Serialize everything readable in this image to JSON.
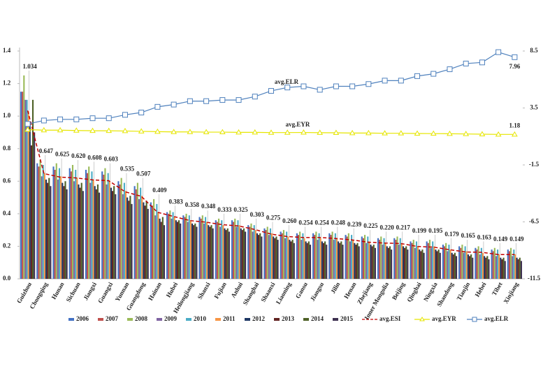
{
  "chart_data": {
    "type": "bar",
    "categories": [
      "Guizhou",
      "Chongqing",
      "Hunan",
      "Sichuan",
      "Jiangxi",
      "Guangxi",
      "Yunnan",
      "Guangdong",
      "Hainan",
      "Hubei",
      "Heilongjiang",
      "Shanxi",
      "Fujian",
      "Anhui",
      "Shanghai",
      "Shaanxi",
      "Liaoning",
      "Gansu",
      "Jiangsu",
      "Jilin",
      "Henan",
      "Zhejiang",
      "Inner Mongolia",
      "Beijing",
      "Qinghai",
      "Ningxia",
      "Shandong",
      "Tianjin",
      "Hebei",
      "Tibet",
      "Xinjiang"
    ],
    "series": [
      {
        "name": "2006",
        "type": "bar",
        "color": "#4472c4",
        "values": [
          1.15,
          0.71,
          0.69,
          0.68,
          0.67,
          0.66,
          0.6,
          0.57,
          0.47,
          0.41,
          0.39,
          0.38,
          0.36,
          0.36,
          0.33,
          0.31,
          0.29,
          0.28,
          0.28,
          0.28,
          0.27,
          0.26,
          0.25,
          0.25,
          0.23,
          0.23,
          0.21,
          0.2,
          0.19,
          0.18,
          0.18
        ]
      },
      {
        "name": "2007",
        "type": "bar",
        "color": "#c0504d",
        "values": [
          1.15,
          0.69,
          0.67,
          0.66,
          0.65,
          0.64,
          0.58,
          0.55,
          0.45,
          0.4,
          0.38,
          0.37,
          0.35,
          0.35,
          0.32,
          0.3,
          0.28,
          0.27,
          0.27,
          0.27,
          0.26,
          0.25,
          0.24,
          0.24,
          0.22,
          0.22,
          0.2,
          0.19,
          0.18,
          0.17,
          0.17
        ]
      },
      {
        "name": "2008",
        "type": "bar",
        "color": "#9bbb59",
        "values": [
          1.25,
          0.73,
          0.71,
          0.7,
          0.69,
          0.68,
          0.62,
          0.59,
          0.49,
          0.42,
          0.4,
          0.39,
          0.37,
          0.37,
          0.34,
          0.32,
          0.3,
          0.29,
          0.29,
          0.29,
          0.28,
          0.27,
          0.26,
          0.26,
          0.24,
          0.24,
          0.22,
          0.21,
          0.2,
          0.19,
          0.19
        ]
      },
      {
        "name": "2009",
        "type": "bar",
        "color": "#8064a2",
        "values": [
          1.1,
          0.63,
          0.61,
          0.6,
          0.59,
          0.58,
          0.52,
          0.49,
          0.39,
          0.37,
          0.35,
          0.34,
          0.32,
          0.32,
          0.29,
          0.27,
          0.25,
          0.24,
          0.24,
          0.24,
          0.23,
          0.22,
          0.21,
          0.21,
          0.19,
          0.19,
          0.17,
          0.16,
          0.15,
          0.14,
          0.14
        ]
      },
      {
        "name": "2010",
        "type": "bar",
        "color": "#4bacc6",
        "values": [
          1.1,
          0.7,
          0.68,
          0.67,
          0.66,
          0.65,
          0.59,
          0.56,
          0.46,
          0.41,
          0.39,
          0.38,
          0.36,
          0.36,
          0.33,
          0.31,
          0.29,
          0.28,
          0.28,
          0.28,
          0.27,
          0.26,
          0.25,
          0.25,
          0.23,
          0.23,
          0.21,
          0.2,
          0.19,
          0.18,
          0.18
        ]
      },
      {
        "name": "2011",
        "type": "bar",
        "color": "#f79646",
        "values": [
          1.03,
          0.65,
          0.63,
          0.62,
          0.61,
          0.6,
          0.54,
          0.51,
          0.41,
          0.38,
          0.36,
          0.35,
          0.33,
          0.33,
          0.3,
          0.28,
          0.26,
          0.25,
          0.25,
          0.25,
          0.24,
          0.23,
          0.22,
          0.22,
          0.2,
          0.2,
          0.18,
          0.17,
          0.16,
          0.15,
          0.15
        ]
      },
      {
        "name": "2012",
        "type": "bar",
        "color": "#1f3864",
        "values": [
          0.95,
          0.61,
          0.59,
          0.58,
          0.57,
          0.56,
          0.5,
          0.47,
          0.37,
          0.36,
          0.34,
          0.33,
          0.31,
          0.31,
          0.28,
          0.26,
          0.24,
          0.23,
          0.23,
          0.23,
          0.22,
          0.21,
          0.2,
          0.2,
          0.18,
          0.18,
          0.16,
          0.15,
          0.14,
          0.13,
          0.13
        ]
      },
      {
        "name": "2013",
        "type": "bar",
        "color": "#632523",
        "values": [
          0.82,
          0.59,
          0.57,
          0.56,
          0.55,
          0.54,
          0.48,
          0.45,
          0.35,
          0.35,
          0.33,
          0.32,
          0.3,
          0.3,
          0.27,
          0.25,
          0.23,
          0.22,
          0.22,
          0.22,
          0.21,
          0.2,
          0.19,
          0.19,
          0.17,
          0.17,
          0.15,
          0.14,
          0.13,
          0.12,
          0.12
        ]
      },
      {
        "name": "2014",
        "type": "bar",
        "color": "#4f6228",
        "values": [
          1.1,
          0.62,
          0.6,
          0.59,
          0.58,
          0.57,
          0.51,
          0.48,
          0.38,
          0.36,
          0.34,
          0.33,
          0.31,
          0.31,
          0.28,
          0.26,
          0.24,
          0.23,
          0.23,
          0.23,
          0.22,
          0.21,
          0.2,
          0.2,
          0.18,
          0.18,
          0.16,
          0.15,
          0.14,
          0.13,
          0.13
        ]
      },
      {
        "name": "2015",
        "type": "bar",
        "color": "#3f3151",
        "values": [
          0.9,
          0.57,
          0.55,
          0.54,
          0.53,
          0.52,
          0.46,
          0.43,
          0.33,
          0.34,
          0.32,
          0.31,
          0.29,
          0.29,
          0.26,
          0.24,
          0.22,
          0.21,
          0.21,
          0.21,
          0.2,
          0.19,
          0.18,
          0.18,
          0.16,
          0.16,
          0.14,
          0.13,
          0.12,
          0.11,
          0.11
        ]
      },
      {
        "name": "avg.ESI",
        "type": "line",
        "color": "#c00000",
        "dash": true,
        "labels": "all",
        "values": [
          1.034,
          0.647,
          0.625,
          0.62,
          0.608,
          0.603,
          0.535,
          0.507,
          0.409,
          0.383,
          0.358,
          0.348,
          0.333,
          0.325,
          0.303,
          0.275,
          0.26,
          0.254,
          0.254,
          0.248,
          0.239,
          0.225,
          0.22,
          0.217,
          0.199,
          0.195,
          0.179,
          0.165,
          0.163,
          0.149,
          0.149
        ],
        "value_labels": [
          "1.034",
          "0.647",
          "0.625",
          "0.620",
          "0.608",
          "0.603",
          "0.535",
          "0.507",
          "0.409",
          "0.383",
          "0.358",
          "0.348",
          "0.333",
          "0.325",
          "0.303",
          "0.275",
          "0.260",
          "0.254",
          "0.254",
          "0.248",
          "0.239",
          "0.225",
          "0.220",
          "0.217",
          "0.199",
          "0.195",
          "0.179",
          "0.165",
          "0.163",
          "0.149",
          "0.149"
        ]
      },
      {
        "name": "avg.EYR",
        "type": "line",
        "axis": "y2",
        "color": "#e6e600",
        "marker": "triangle",
        "labels": "last",
        "values": [
          1.6,
          1.55,
          1.55,
          1.52,
          1.5,
          1.5,
          1.48,
          1.45,
          1.42,
          1.4,
          1.4,
          1.38,
          1.38,
          1.36,
          1.36,
          1.34,
          1.34,
          1.35,
          1.33,
          1.32,
          1.3,
          1.3,
          1.28,
          1.28,
          1.26,
          1.25,
          1.24,
          1.22,
          1.2,
          1.18,
          1.18
        ]
      },
      {
        "name": "avg.ELR",
        "type": "line",
        "axis": "y2",
        "color": "#4f81bd",
        "marker": "square",
        "labels": "last",
        "values": [
          2.1,
          2.4,
          2.5,
          2.5,
          2.6,
          2.6,
          2.9,
          3.1,
          3.6,
          3.8,
          4.1,
          4.1,
          4.2,
          4.2,
          4.5,
          5.0,
          5.3,
          5.4,
          5.1,
          5.4,
          5.4,
          5.6,
          5.9,
          5.9,
          6.3,
          6.5,
          6.9,
          7.4,
          7.5,
          8.4,
          7.96
        ]
      }
    ],
    "annotations": [
      "avg.ELR",
      "avg.EYR"
    ],
    "ylim": [
      0,
      1.4
    ],
    "yticks": [
      {
        "value": 0,
        "label": "0.0"
      },
      0.2,
      0.4,
      0.6,
      0.8,
      {
        "value": 1,
        "label": "1.0"
      },
      1.2,
      1.4
    ],
    "y2lim": [
      -11.5,
      8.5
    ],
    "y2ticks": [
      -11.5,
      -6.5,
      -1.5,
      3.5,
      8.5
    ],
    "legend": "bottom"
  }
}
